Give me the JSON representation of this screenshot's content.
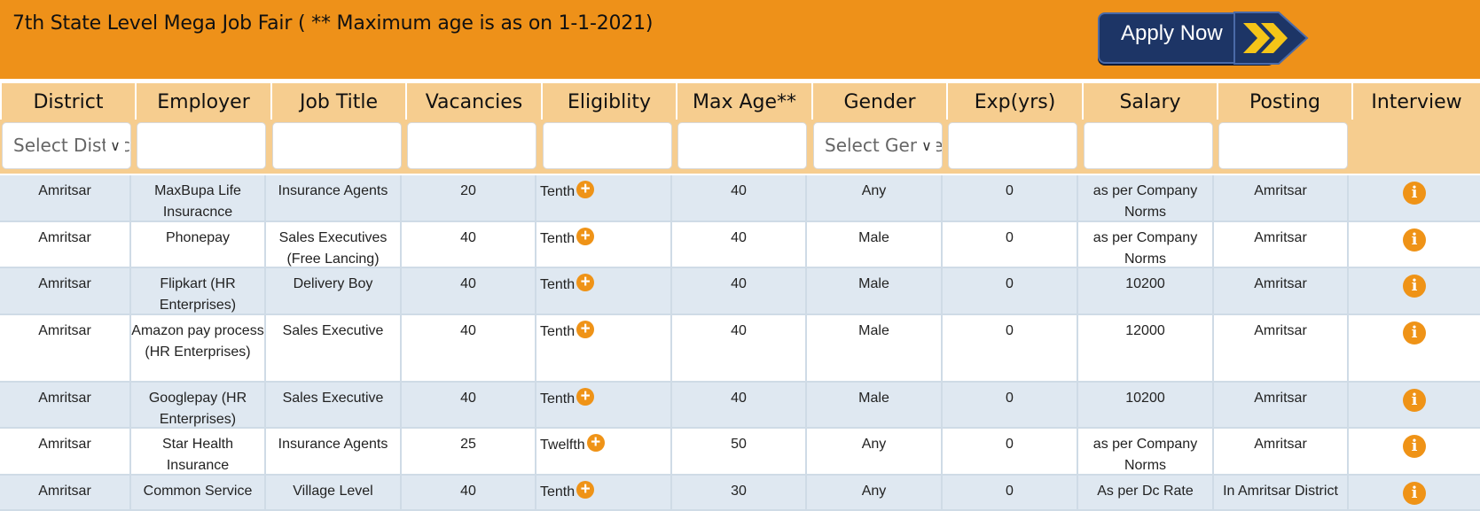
{
  "header": {
    "title": "7th State Level Mega Job Fair ( ** Maximum age is as on 1-1-2021)",
    "apply_label": "Apply Now"
  },
  "columns": [
    "District",
    "Employer",
    "Job Title",
    "Vacancies",
    "Eligiblity",
    "Max Age**",
    "Gender",
    "Exp(yrs)",
    "Salary",
    "Posting",
    "Interview"
  ],
  "filters": {
    "district_placeholder": "Select District",
    "gender_placeholder": "Select Gender"
  },
  "colors": {
    "banner": "#ee9119",
    "header": "#f6cd8f",
    "accent": "#ef9317",
    "button": "#1d3566",
    "chevron": "#f5c518"
  },
  "rows": [
    {
      "district": "Amritsar",
      "employer": "MaxBupa Life Insuracnce",
      "job_title": "Insurance Agents",
      "vacancies": "20",
      "eligibility": "Tenth",
      "max_age": "40",
      "gender": "Any",
      "exp": "0",
      "salary": "as per Company Norms",
      "posting": "Amritsar"
    },
    {
      "district": "Amritsar",
      "employer": "Phonepay",
      "job_title": "Sales Executives (Free Lancing)",
      "vacancies": "40",
      "eligibility": "Tenth",
      "max_age": "40",
      "gender": "Male",
      "exp": "0",
      "salary": "as per Company Norms",
      "posting": "Amritsar"
    },
    {
      "district": "Amritsar",
      "employer": "Flipkart (HR Enterprises)",
      "job_title": "Delivery Boy",
      "vacancies": "40",
      "eligibility": "Tenth",
      "max_age": "40",
      "gender": "Male",
      "exp": "0",
      "salary": "10200",
      "posting": "Amritsar"
    },
    {
      "district": "Amritsar",
      "employer": "Amazon pay process (HR Enterprises)",
      "job_title": "Sales Executive",
      "vacancies": "40",
      "eligibility": "Tenth",
      "max_age": "40",
      "gender": "Male",
      "exp": "0",
      "salary": "12000",
      "posting": "Amritsar"
    },
    {
      "district": "Amritsar",
      "employer": "Googlepay (HR Enterprises)",
      "job_title": "Sales Executive",
      "vacancies": "40",
      "eligibility": "Tenth",
      "max_age": "40",
      "gender": "Male",
      "exp": "0",
      "salary": "10200",
      "posting": "Amritsar"
    },
    {
      "district": "Amritsar",
      "employer": "Star Health Insurance",
      "job_title": "Insurance Agents",
      "vacancies": "25",
      "eligibility": "Twelfth",
      "max_age": "50",
      "gender": "Any",
      "exp": "0",
      "salary": "as per Company Norms",
      "posting": "Amritsar"
    },
    {
      "district": "Amritsar",
      "employer": "Common Service",
      "job_title": "Village Level",
      "vacancies": "40",
      "eligibility": "Tenth",
      "max_age": "30",
      "gender": "Any",
      "exp": "0",
      "salary": "As per Dc Rate",
      "posting": "In Amritsar District"
    }
  ]
}
